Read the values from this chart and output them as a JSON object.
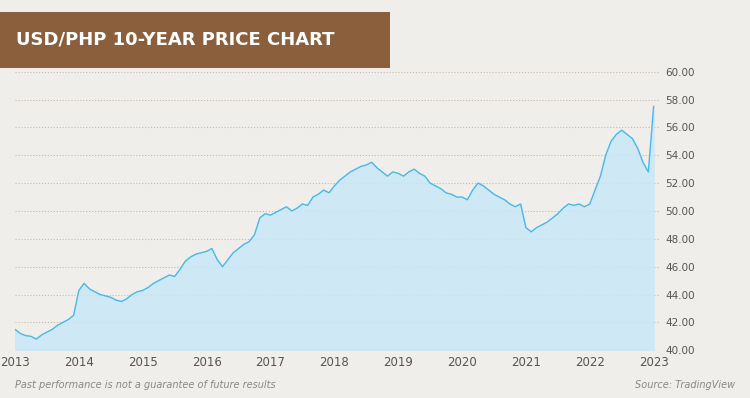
{
  "title": "USD/PHP 10-YEAR PRICE CHART",
  "title_bg_color": "#8B5E3C",
  "title_text_color": "#FFFFFF",
  "bg_color": "#F0EEEB",
  "plot_bg_color": "#F0EEEB",
  "line_color": "#4BB8E8",
  "fill_color_top": "#C8E8F8",
  "fill_color_bottom": "#EAF5FC",
  "ylabel_right": true,
  "ylim": [
    40.0,
    60.0
  ],
  "yticks": [
    40.0,
    42.0,
    44.0,
    46.0,
    48.0,
    50.0,
    52.0,
    54.0,
    56.0,
    58.0,
    60.0
  ],
  "xtick_labels": [
    "2013",
    "2014",
    "2015",
    "2016",
    "2017",
    "2018",
    "2019",
    "2020",
    "2021",
    "2022",
    "2023"
  ],
  "footer_left": "Past performance is not a guarantee of future results",
  "footer_right": "Source: TradingView",
  "grid_color": "#C8B8A8",
  "grid_style": "dotted",
  "time_points": [
    2013.0,
    2013.083,
    2013.167,
    2013.25,
    2013.333,
    2013.417,
    2013.5,
    2013.583,
    2013.667,
    2013.75,
    2013.833,
    2013.917,
    2014.0,
    2014.083,
    2014.167,
    2014.25,
    2014.333,
    2014.417,
    2014.5,
    2014.583,
    2014.667,
    2014.75,
    2014.833,
    2014.917,
    2015.0,
    2015.083,
    2015.167,
    2015.25,
    2015.333,
    2015.417,
    2015.5,
    2015.583,
    2015.667,
    2015.75,
    2015.833,
    2015.917,
    2016.0,
    2016.083,
    2016.167,
    2016.25,
    2016.333,
    2016.417,
    2016.5,
    2016.583,
    2016.667,
    2016.75,
    2016.833,
    2016.917,
    2017.0,
    2017.083,
    2017.167,
    2017.25,
    2017.333,
    2017.417,
    2017.5,
    2017.583,
    2017.667,
    2017.75,
    2017.833,
    2017.917,
    2018.0,
    2018.083,
    2018.167,
    2018.25,
    2018.333,
    2018.417,
    2018.5,
    2018.583,
    2018.667,
    2018.75,
    2018.833,
    2018.917,
    2019.0,
    2019.083,
    2019.167,
    2019.25,
    2019.333,
    2019.417,
    2019.5,
    2019.583,
    2019.667,
    2019.75,
    2019.833,
    2019.917,
    2020.0,
    2020.083,
    2020.167,
    2020.25,
    2020.333,
    2020.417,
    2020.5,
    2020.583,
    2020.667,
    2020.75,
    2020.833,
    2020.917,
    2021.0,
    2021.083,
    2021.167,
    2021.25,
    2021.333,
    2021.417,
    2021.5,
    2021.583,
    2021.667,
    2021.75,
    2021.833,
    2021.917,
    2022.0,
    2022.083,
    2022.167,
    2022.25,
    2022.333,
    2022.417,
    2022.5,
    2022.583,
    2022.667,
    2022.75,
    2022.833,
    2022.917,
    2023.0
  ],
  "values": [
    41.5,
    41.2,
    41.05,
    41.0,
    40.8,
    41.1,
    41.3,
    41.5,
    41.8,
    42.0,
    42.2,
    42.5,
    44.3,
    44.8,
    44.4,
    44.2,
    44.0,
    43.9,
    43.8,
    43.6,
    43.5,
    43.7,
    44.0,
    44.2,
    44.3,
    44.5,
    44.8,
    45.0,
    45.2,
    45.4,
    45.3,
    45.8,
    46.4,
    46.7,
    46.9,
    47.0,
    47.1,
    47.3,
    46.5,
    46.0,
    46.5,
    47.0,
    47.3,
    47.6,
    47.8,
    48.3,
    49.5,
    49.8,
    49.7,
    49.9,
    50.1,
    50.3,
    50.0,
    50.2,
    50.5,
    50.4,
    51.0,
    51.2,
    51.5,
    51.3,
    51.8,
    52.2,
    52.5,
    52.8,
    53.0,
    53.2,
    53.3,
    53.5,
    53.1,
    52.8,
    52.5,
    52.8,
    52.7,
    52.5,
    52.8,
    53.0,
    52.7,
    52.5,
    52.0,
    51.8,
    51.6,
    51.3,
    51.2,
    51.0,
    51.0,
    50.8,
    51.5,
    52.0,
    51.8,
    51.5,
    51.2,
    51.0,
    50.8,
    50.5,
    50.3,
    50.5,
    48.8,
    48.5,
    48.8,
    49.0,
    49.2,
    49.5,
    49.8,
    50.2,
    50.5,
    50.4,
    50.5,
    50.3,
    50.5,
    51.5,
    52.5,
    54.0,
    55.0,
    55.5,
    55.8,
    55.5,
    55.2,
    54.5,
    53.5,
    52.8,
    57.5
  ]
}
